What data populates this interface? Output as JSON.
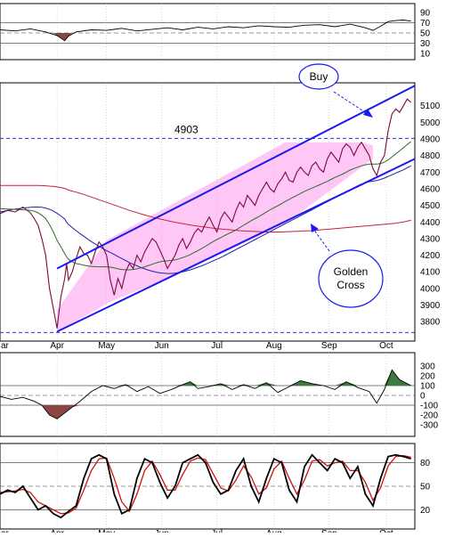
{
  "chart_data": [
    {
      "type": "line",
      "panel": "rsi",
      "yticks": [
        90,
        70,
        50,
        30,
        10
      ],
      "ylim": [
        0,
        100
      ],
      "hlines": [
        70,
        50,
        30
      ],
      "xlim": [
        0,
        218
      ],
      "x": [
        0,
        8,
        16,
        24,
        30,
        34,
        36,
        40,
        48,
        56,
        64,
        72,
        80,
        88,
        96,
        104,
        112,
        120,
        128,
        136,
        144,
        152,
        160,
        168,
        176,
        184,
        192,
        196,
        200,
        204,
        208,
        212,
        216
      ],
      "values": [
        56,
        54,
        58,
        52,
        45,
        35,
        44,
        52,
        56,
        55,
        59,
        54,
        57,
        60,
        56,
        61,
        58,
        62,
        60,
        64,
        62,
        61,
        65,
        66,
        62,
        67,
        60,
        55,
        63,
        72,
        74,
        75,
        73
      ],
      "color": "#000000"
    },
    {
      "type": "line",
      "panel": "price",
      "yticks": [
        5100,
        5000,
        4900,
        4800,
        4700,
        4600,
        4500,
        4400,
        4300,
        4200,
        4100,
        4000,
        3900,
        3800
      ],
      "ylim": [
        3710,
        5200
      ],
      "xlim": [
        0,
        218
      ],
      "month_labels": [
        {
          "x": 0,
          "label": "ar"
        },
        {
          "x": 30,
          "label": "Apr"
        },
        {
          "x": 56,
          "label": "May"
        },
        {
          "x": 85,
          "label": "Jun"
        },
        {
          "x": 114,
          "label": "Jul"
        },
        {
          "x": 144,
          "label": "Aug"
        },
        {
          "x": 173,
          "label": "Sep"
        },
        {
          "x": 203,
          "label": "Oct"
        }
      ],
      "hline_value": 4903,
      "hline_label": "4903",
      "lowline_value": 3735,
      "x": [
        0,
        4,
        8,
        12,
        16,
        18,
        20,
        22,
        24,
        26,
        28,
        30,
        32,
        34,
        35,
        36,
        38,
        40,
        42,
        44,
        46,
        48,
        50,
        52,
        54,
        56,
        58,
        60,
        62,
        64,
        66,
        68,
        70,
        72,
        74,
        76,
        78,
        80,
        82,
        84,
        86,
        88,
        90,
        92,
        94,
        96,
        98,
        100,
        102,
        104,
        106,
        108,
        110,
        112,
        114,
        116,
        118,
        120,
        122,
        124,
        126,
        128,
        130,
        132,
        134,
        136,
        138,
        140,
        142,
        144,
        146,
        148,
        150,
        152,
        154,
        156,
        158,
        160,
        162,
        164,
        166,
        168,
        170,
        172,
        174,
        176,
        178,
        180,
        182,
        184,
        186,
        188,
        190,
        192,
        194,
        196,
        198,
        200,
        202,
        204,
        206,
        208,
        210,
        212,
        214,
        216
      ],
      "series": [
        {
          "key": "price",
          "color": "#7a0a3a",
          "values": [
            4450,
            4470,
            4460,
            4490,
            4455,
            4420,
            4380,
            4300,
            4200,
            4000,
            3880,
            3760,
            3950,
            4060,
            4150,
            4050,
            4100,
            4180,
            4250,
            4210,
            4200,
            4150,
            4220,
            4280,
            4250,
            4200,
            4050,
            3960,
            4060,
            4000,
            4100,
            4150,
            4120,
            4200,
            4160,
            4220,
            4260,
            4300,
            4280,
            4230,
            4180,
            4120,
            4160,
            4200,
            4260,
            4300,
            4240,
            4280,
            4330,
            4360,
            4340,
            4390,
            4430,
            4380,
            4340,
            4420,
            4460,
            4430,
            4400,
            4470,
            4520,
            4490,
            4560,
            4530,
            4500,
            4560,
            4600,
            4640,
            4600,
            4580,
            4630,
            4660,
            4700,
            4650,
            4640,
            4700,
            4730,
            4700,
            4680,
            4740,
            4760,
            4720,
            4700,
            4780,
            4820,
            4790,
            4760,
            4840,
            4870,
            4850,
            4800,
            4850,
            4880,
            4840,
            4800,
            4720,
            4680,
            4760,
            4800,
            4950,
            5050,
            5080,
            5060,
            5100,
            5140,
            5120
          ]
        },
        {
          "key": "ma_short",
          "color": "#2e6b2e",
          "values": [
            4480,
            4478,
            4476,
            4474,
            4470,
            4465,
            4455,
            4440,
            4420,
            4385,
            4340,
            4290,
            4250,
            4210,
            4190,
            4175,
            4160,
            4150,
            4145,
            4140,
            4136,
            4133,
            4131,
            4130,
            4130,
            4130,
            4128,
            4124,
            4118,
            4114,
            4112,
            4112,
            4114,
            4118,
            4124,
            4130,
            4138,
            4146,
            4154,
            4160,
            4164,
            4166,
            4168,
            4172,
            4178,
            4186,
            4194,
            4204,
            4216,
            4228,
            4240,
            4254,
            4268,
            4282,
            4294,
            4306,
            4318,
            4330,
            4340,
            4352,
            4366,
            4380,
            4394,
            4408,
            4420,
            4432,
            4446,
            4460,
            4474,
            4486,
            4498,
            4510,
            4524,
            4536,
            4548,
            4560,
            4572,
            4584,
            4594,
            4604,
            4614,
            4624,
            4634,
            4644,
            4656,
            4668,
            4678,
            4688,
            4700,
            4712,
            4722,
            4730,
            4738,
            4744,
            4748,
            4748,
            4748,
            4752,
            4760,
            4774,
            4792,
            4810,
            4828,
            4846,
            4866,
            4884
          ]
        },
        {
          "key": "ma_long",
          "color": "#2222aa",
          "values": [
            4460,
            4470,
            4478,
            4484,
            4488,
            4490,
            4490,
            4488,
            4484,
            4476,
            4466,
            4452,
            4436,
            4418,
            4400,
            4384,
            4366,
            4348,
            4330,
            4314,
            4298,
            4282,
            4268,
            4254,
            4240,
            4228,
            4216,
            4204,
            4192,
            4180,
            4168,
            4156,
            4146,
            4136,
            4126,
            4118,
            4110,
            4104,
            4098,
            4094,
            4092,
            4090,
            4090,
            4092,
            4096,
            4100,
            4106,
            4112,
            4120,
            4128,
            4136,
            4146,
            4156,
            4166,
            4176,
            4186,
            4198,
            4210,
            4222,
            4234,
            4246,
            4258,
            4270,
            4282,
            4294,
            4306,
            4318,
            4330,
            4342,
            4354,
            4366,
            4378,
            4390,
            4402,
            4414,
            4426,
            4438,
            4450,
            4462,
            4474,
            4486,
            4498,
            4510,
            4522,
            4534,
            4546,
            4558,
            4570,
            4582,
            4594,
            4606,
            4618,
            4628,
            4636,
            4642,
            4646,
            4650,
            4656,
            4664,
            4674,
            4684,
            4694,
            4704,
            4714,
            4726,
            4738
          ]
        },
        {
          "key": "ma_200",
          "color": "#cc1f3a",
          "values": [
            4620,
            4620,
            4620,
            4620,
            4620,
            4620,
            4620,
            4619,
            4618,
            4616,
            4614,
            4611,
            4607,
            4602,
            4597,
            4592,
            4586,
            4580,
            4573,
            4566,
            4558,
            4550,
            4542,
            4534,
            4526,
            4518,
            4510,
            4502,
            4494,
            4486,
            4478,
            4470,
            4463,
            4456,
            4449,
            4442,
            4436,
            4430,
            4424,
            4418,
            4413,
            4408,
            4403,
            4398,
            4394,
            4390,
            4386,
            4382,
            4378,
            4375,
            4372,
            4369,
            4366,
            4363,
            4360,
            4358,
            4356,
            4354,
            4352,
            4350,
            4348,
            4346,
            4345,
            4344,
            4343,
            4342,
            4341,
            4340,
            4340,
            4340,
            4340,
            4340,
            4341,
            4342,
            4343,
            4344,
            4345,
            4346,
            4347,
            4348,
            4350,
            4352,
            4354,
            4356,
            4358,
            4360,
            4362,
            4364,
            4366,
            4368,
            4370,
            4372,
            4374,
            4376,
            4378,
            4380,
            4382,
            4384,
            4386,
            4388,
            4390,
            4393,
            4396,
            4400,
            4405,
            4410
          ]
        }
      ],
      "channel": {
        "upper": [
          [
            30,
            4120
          ],
          [
            218,
            5220
          ]
        ],
        "lower": [
          [
            30,
            3740
          ],
          [
            218,
            4780
          ]
        ],
        "color": "#1a1aee"
      },
      "annotations": [
        {
          "label": "Buy",
          "shape": "circle"
        },
        {
          "label": "Golden",
          "shape": "circle"
        },
        {
          "label": "Cross",
          "shape": "circle"
        }
      ]
    },
    {
      "type": "area",
      "panel": "oscillator",
      "yticks": [
        300,
        200,
        100,
        0,
        -100,
        -200,
        -300
      ],
      "ylim": [
        -400,
        400
      ],
      "hlines": [
        100,
        0,
        -100
      ],
      "xlim": [
        0,
        218
      ],
      "x": [
        0,
        6,
        12,
        18,
        22,
        26,
        30,
        34,
        38,
        42,
        48,
        54,
        60,
        66,
        72,
        78,
        84,
        90,
        96,
        100,
        104,
        110,
        116,
        122,
        128,
        134,
        140,
        146,
        152,
        158,
        164,
        170,
        176,
        182,
        188,
        194,
        198,
        202,
        206,
        210,
        214,
        216
      ],
      "values": [
        -10,
        -40,
        -20,
        -60,
        -100,
        -200,
        -240,
        -180,
        -120,
        -60,
        40,
        100,
        70,
        110,
        40,
        90,
        20,
        60,
        110,
        140,
        70,
        90,
        120,
        60,
        110,
        70,
        130,
        30,
        90,
        150,
        120,
        100,
        60,
        140,
        80,
        40,
        -80,
        60,
        260,
        160,
        120,
        100
      ],
      "color": "#000000",
      "fill_positive": "#3d7a3d",
      "fill_negative": "#8a4545"
    },
    {
      "type": "line",
      "panel": "stochastic",
      "yticks": [
        80,
        50,
        20
      ],
      "ylim": [
        0,
        100
      ],
      "hlines": [
        80,
        50,
        20
      ],
      "xlim": [
        0,
        218
      ],
      "x": [
        0,
        4,
        8,
        12,
        16,
        20,
        24,
        28,
        32,
        36,
        40,
        44,
        48,
        52,
        56,
        60,
        64,
        68,
        72,
        76,
        80,
        84,
        88,
        92,
        96,
        100,
        104,
        108,
        112,
        116,
        120,
        124,
        128,
        132,
        136,
        140,
        144,
        148,
        152,
        156,
        160,
        164,
        168,
        172,
        176,
        180,
        184,
        188,
        192,
        196,
        200,
        204,
        208,
        212,
        216
      ],
      "series": [
        {
          "key": "k",
          "color": "#000000",
          "values": [
            40,
            45,
            42,
            50,
            35,
            20,
            25,
            15,
            10,
            18,
            25,
            60,
            85,
            90,
            85,
            40,
            15,
            20,
            60,
            85,
            80,
            55,
            35,
            50,
            80,
            85,
            90,
            80,
            55,
            40,
            45,
            70,
            85,
            50,
            30,
            60,
            85,
            80,
            45,
            30,
            75,
            90,
            80,
            70,
            85,
            80,
            60,
            75,
            40,
            25,
            60,
            88,
            90,
            88,
            85
          ]
        },
        {
          "key": "d",
          "color": "#d01010",
          "values": [
            42,
            43,
            44,
            46,
            42,
            30,
            25,
            20,
            15,
            16,
            22,
            45,
            70,
            85,
            86,
            60,
            30,
            18,
            40,
            70,
            82,
            65,
            45,
            45,
            65,
            82,
            86,
            84,
            66,
            48,
            44,
            58,
            76,
            62,
            40,
            48,
            72,
            82,
            60,
            40,
            58,
            82,
            84,
            76,
            80,
            82,
            70,
            70,
            55,
            32,
            48,
            76,
            88,
            89,
            87
          ]
        }
      ]
    }
  ]
}
